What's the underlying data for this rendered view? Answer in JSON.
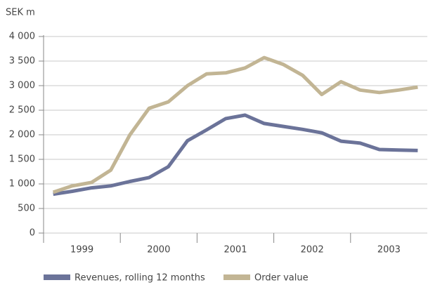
{
  "chart_data": {
    "type": "line",
    "y_label": "SEK m",
    "x": [
      1999.125,
      1999.375,
      1999.625,
      1999.875,
      2000.125,
      2000.375,
      2000.625,
      2000.875,
      2001.125,
      2001.375,
      2001.625,
      2001.875,
      2002.125,
      2002.375,
      2002.625,
      2002.875,
      2003.125,
      2003.375,
      2003.625,
      2003.875
    ],
    "xlim": [
      1999,
      2004
    ],
    "xticks": [
      {
        "value": 1999.5,
        "label": "1999"
      },
      {
        "value": 2000.5,
        "label": "2000"
      },
      {
        "value": 2001.5,
        "label": "2001"
      },
      {
        "value": 2002.5,
        "label": "2002"
      },
      {
        "value": 2003.5,
        "label": "2003"
      }
    ],
    "ylim": [
      0,
      4000
    ],
    "yticks": [
      0,
      500,
      {
        "value": 1000,
        "label": "1 000"
      },
      {
        "value": 1500,
        "label": "1 500"
      },
      {
        "value": 2000,
        "label": "2 000"
      },
      {
        "value": 2500,
        "label": "2 500"
      },
      {
        "value": 3000,
        "label": "3 000"
      },
      {
        "value": 3500,
        "label": "3 500"
      },
      {
        "value": 4000,
        "label": "4 000"
      }
    ],
    "grid": true,
    "legend": "bottom",
    "series": [
      {
        "name": "Revenues, rolling 12 months",
        "color": "#6b7399",
        "values": [
          790,
          850,
          920,
          960,
          1050,
          1130,
          1350,
          1880,
          2100,
          2330,
          2400,
          2230,
          2170,
          2110,
          2040,
          1870,
          1830,
          1700,
          1690,
          1680
        ]
      },
      {
        "name": "Order value",
        "color": "#c2b594",
        "values": [
          830,
          960,
          1030,
          1280,
          2000,
          2540,
          2670,
          3000,
          3240,
          3260,
          3360,
          3570,
          3430,
          3210,
          2820,
          3080,
          2910,
          2860,
          2910,
          2970
        ]
      }
    ]
  }
}
